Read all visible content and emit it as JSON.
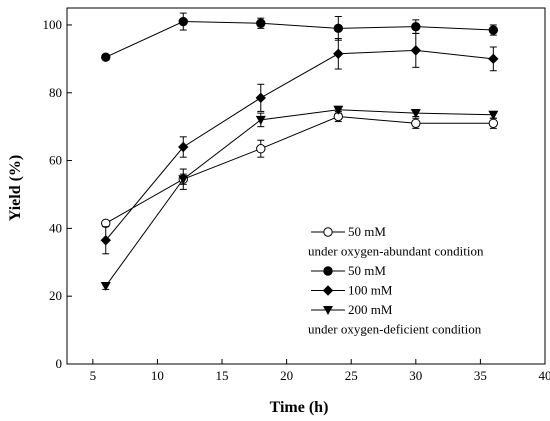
{
  "chart_data": {
    "type": "line",
    "xlabel": "Time (h)",
    "ylabel": "Yield (%)",
    "xlim": [
      3,
      40
    ],
    "ylim": [
      0,
      105
    ],
    "xticks": [
      5,
      10,
      15,
      20,
      25,
      30,
      35,
      40
    ],
    "yticks": [
      0,
      20,
      40,
      60,
      80,
      100
    ],
    "grid": false,
    "legend_position": "lower-right",
    "x": [
      6,
      12,
      18,
      24,
      30,
      36
    ],
    "series": [
      {
        "name": "50 mM",
        "marker": "open-circle",
        "values": [
          41.5,
          54.5,
          63.5,
          73,
          71,
          71
        ],
        "errors": [
          0.8,
          1.5,
          2.5,
          1.5,
          1.5,
          1.5
        ]
      },
      {
        "name": "50 mM",
        "marker": "filled-circle",
        "values": [
          90.5,
          101,
          100.5,
          99,
          99.5,
          98.5
        ],
        "errors": [
          0.8,
          2.5,
          1.5,
          3.5,
          2,
          1.5
        ]
      },
      {
        "name": "100 mM",
        "marker": "filled-diamond",
        "values": [
          36.5,
          64,
          78.5,
          91.5,
          92.5,
          90
        ],
        "errors": [
          4,
          3,
          4,
          4.5,
          5,
          3.5
        ]
      },
      {
        "name": "200 mM",
        "marker": "filled-triangle-down",
        "values": [
          23,
          54.5,
          72,
          75,
          74,
          73.5
        ],
        "errors": [
          1,
          3,
          2,
          1,
          1,
          1
        ]
      }
    ],
    "legend": {
      "entries": [
        {
          "label": "50 mM",
          "marker": "open-circle"
        },
        {
          "label": "under oxygen-abundant condition",
          "marker": ""
        },
        {
          "label": "50 mM",
          "marker": "filled-circle"
        },
        {
          "label": "100 mM",
          "marker": "filled-diamond"
        },
        {
          "label": "200 mM",
          "marker": "filled-triangle-down"
        },
        {
          "label": "under oxygen-deficient condition",
          "marker": ""
        }
      ]
    }
  }
}
